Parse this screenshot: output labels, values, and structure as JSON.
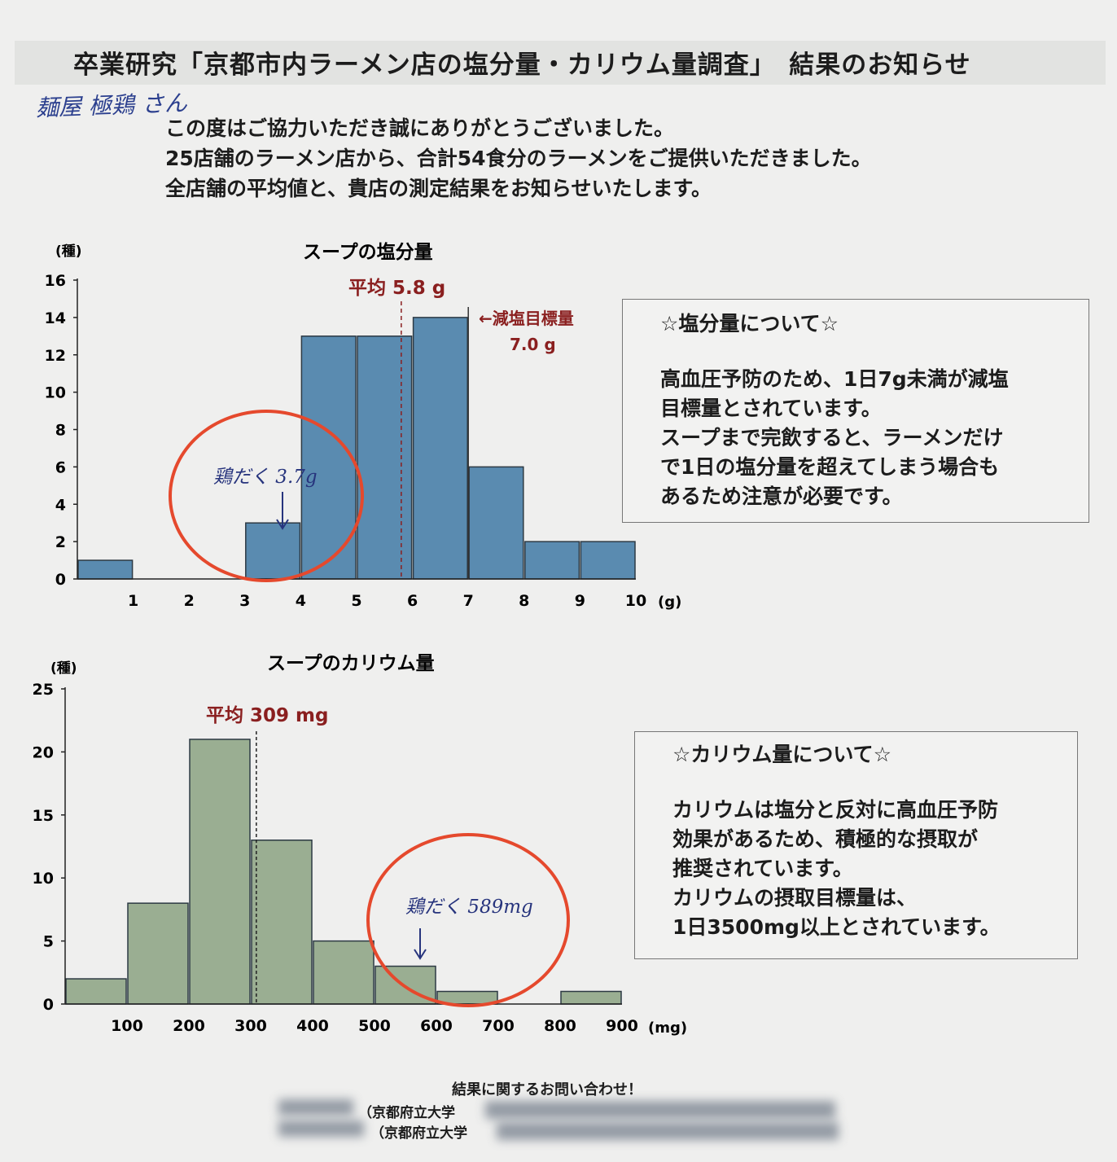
{
  "title": "卒業研究「京都市内ラーメン店の塩分量・カリウム量調査」　結果のお知らせ",
  "handwritten_store": "麺屋 極鶏 さん",
  "intro": [
    "この度はご協力いただき誠にありがとうございました。",
    "25店舗のラーメン店から、合計54食分のラーメンをご提供いただきました。",
    "全店舗の平均値と、貴店の測定結果をお知らせいたします。"
  ],
  "salt_box": {
    "title": "☆塩分量について☆",
    "lines": [
      "高血圧予防のため、1日7g未満が減塩",
      "目標量とされています。",
      "スープまで完飲すると、ラーメンだけ",
      "で1日の塩分量を超えてしまう場合も",
      "あるため注意が必要です。"
    ]
  },
  "potassium_box": {
    "title": "☆カリウム量について☆",
    "lines": [
      "カリウムは塩分と反対に高血圧予防",
      "効果があるため、積極的な摂取が",
      "推奨されています。",
      "カリウムの摂取目標量は、",
      "1日3500mg以上とされています。"
    ]
  },
  "handwritten_notes": {
    "salt": "鶏だく 3.7g",
    "potassium": "鶏だく 589mg"
  },
  "footer": {
    "title": "結果に関するお問い合わせ！",
    "line1": "（京都府立大学",
    "line2": "（京都府立大学"
  },
  "colors": {
    "salt_bar": "#5a8bb0",
    "potassium_bar": "#9aae92",
    "mean_label": "#8a1f1f",
    "circle": "#e5492d",
    "handwriting": "#27347d"
  },
  "chart_data": [
    {
      "type": "bar",
      "title": "スープの塩分量",
      "ylabel": "(種)",
      "xlabel": "(g)",
      "x_ticks": [
        "1",
        "2",
        "3",
        "4",
        "5",
        "6",
        "7",
        "8",
        "9",
        "10"
      ],
      "y_ticks": [
        "0",
        "2",
        "4",
        "6",
        "8",
        "10",
        "12",
        "14",
        "16"
      ],
      "bins": [
        [
          0,
          1
        ],
        [
          1,
          2
        ],
        [
          2,
          3
        ],
        [
          3,
          4
        ],
        [
          4,
          5
        ],
        [
          5,
          6
        ],
        [
          6,
          7
        ],
        [
          7,
          8
        ],
        [
          8,
          9
        ],
        [
          9,
          10
        ]
      ],
      "values": [
        1,
        0,
        0,
        3,
        13,
        13,
        14,
        6,
        2,
        2
      ],
      "xlim": [
        0,
        10
      ],
      "ylim": [
        0,
        16
      ],
      "mean": {
        "value": 5.8,
        "label": "平均 5.8 g"
      },
      "target": {
        "value": 7.0,
        "label_line1": "←減塩目標量",
        "label_line2": "7.0 g"
      },
      "highlight": {
        "value": 3.7
      }
    },
    {
      "type": "bar",
      "title": "スープのカリウム量",
      "ylabel": "(種)",
      "xlabel": "(mg)",
      "x_ticks": [
        "100",
        "200",
        "300",
        "400",
        "500",
        "600",
        "700",
        "800",
        "900"
      ],
      "y_ticks": [
        "0",
        "5",
        "10",
        "15",
        "20",
        "25"
      ],
      "bins": [
        [
          0,
          100
        ],
        [
          100,
          200
        ],
        [
          200,
          300
        ],
        [
          300,
          400
        ],
        [
          400,
          500
        ],
        [
          500,
          600
        ],
        [
          600,
          700
        ],
        [
          700,
          800
        ],
        [
          800,
          900
        ]
      ],
      "values": [
        2,
        8,
        21,
        13,
        5,
        3,
        1,
        0,
        1
      ],
      "xlim": [
        0,
        900
      ],
      "ylim": [
        0,
        25
      ],
      "mean": {
        "value": 309,
        "label": "平均 309 mg"
      },
      "highlight": {
        "value": 589
      }
    }
  ]
}
